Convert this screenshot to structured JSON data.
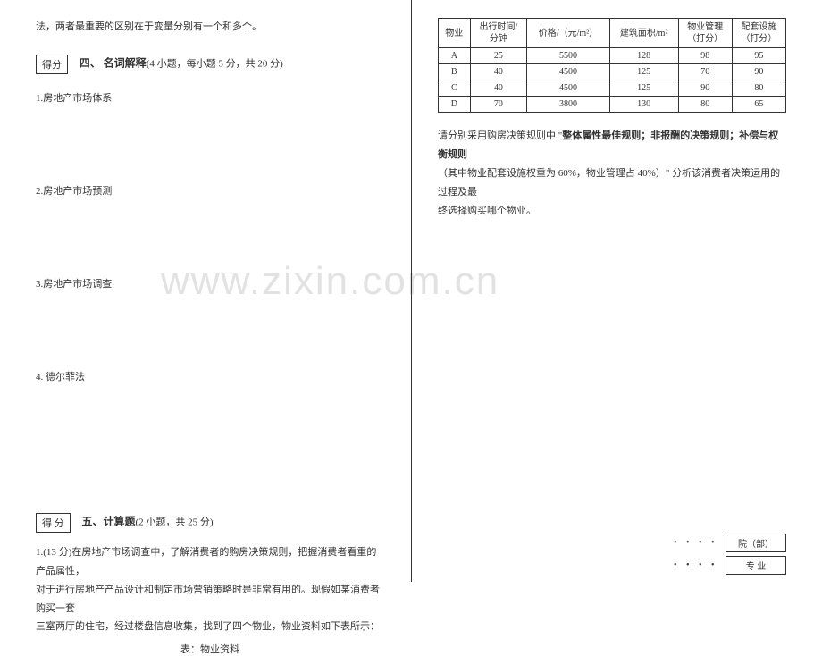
{
  "watermark": "www.zixin.com.cn",
  "left": {
    "intro_line": "法，两者最重要的区别在于变量分别有一个和多个。",
    "score_label": "得分",
    "section4": {
      "heading": "四、 名词解释",
      "sub": "(4 小题，每小题 5 分，共 20 分)"
    },
    "q1": "1.房地产市场体系",
    "q2": "2.房地产市场预测",
    "q3": "3.房地产市场调查",
    "q4": "4.  德尔菲法",
    "score_label2": "得   分",
    "section5": {
      "heading": "五、计算题",
      "sub": "(2 小题，共 25 分)"
    },
    "calc_p1": "1.(13 分)在房地产市场调查中，了解消费者的购房决策规则，把握消费者看重的产品属性，",
    "calc_p2": "对于进行房地产产品设计和制定市场营销策略时是非常有用的。现假如某消费者购买一套",
    "calc_p3": "三室两厅的住宅，经过楼盘信息收集，找到了四个物业，物业资料如下表所示：",
    "table_caption": "表：物业资料"
  },
  "right": {
    "table": {
      "headers": {
        "c1": "物业",
        "c2a": "出行时间/",
        "c2b": "分钟",
        "c3": "价格/（元/m²）",
        "c4": "建筑面积/m²",
        "c5a": "物业管理",
        "c5b": "（打分）",
        "c6a": "配套设施",
        "c6b": "（打分）"
      },
      "rows": [
        {
          "p": "A",
          "t": "25",
          "price": "5500",
          "area": "128",
          "mgmt": "98",
          "fac": "95"
        },
        {
          "p": "B",
          "t": "40",
          "price": "4500",
          "area": "125",
          "mgmt": "70",
          "fac": "90"
        },
        {
          "p": "C",
          "t": "40",
          "price": "4500",
          "area": "125",
          "mgmt": "90",
          "fac": "80"
        },
        {
          "p": "D",
          "t": "70",
          "price": "3800",
          "area": "130",
          "mgmt": "80",
          "fac": "65"
        }
      ]
    },
    "desc1a": "请分别采用购房决策规则中 \"",
    "desc1b": "整体属性最佳规则；非报酬的决策规则；补偿与权衡规则",
    "desc2": "（其中物业配套设施权重为 60%，物业管理占 40%）\" 分析该消费者决策运用的过程及最",
    "desc3": "终选择购买哪个物业。",
    "foot": {
      "dots": "•  •  •  •",
      "box1": "院（部）",
      "box2": "专  业"
    }
  }
}
